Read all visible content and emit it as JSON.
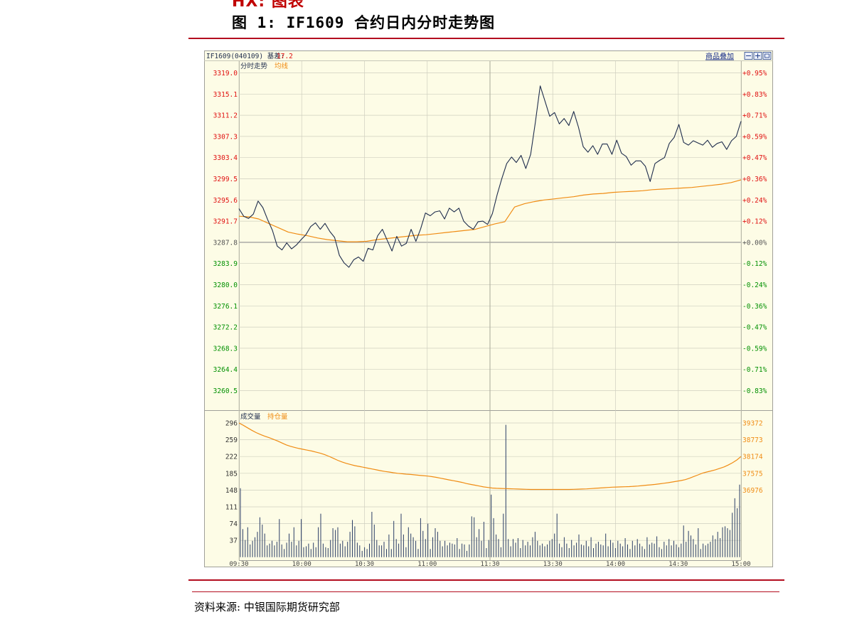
{
  "section_title": "HX: 图表",
  "figure_title": "图 1: IF1609 合约日内分时走势图",
  "source": "资料来源: 中银国际期货研究部",
  "chart_header": {
    "contract_prefix": "IF1609(040109) 基差:",
    "basis_value": "17.2",
    "overlay_link": "商品叠加",
    "toolbar_icons": [
      "zoom-out-icon",
      "zoom-in-icon",
      "fit-icon"
    ]
  },
  "colors": {
    "background": "#fdfce6",
    "price_line": "#1f2d4d",
    "avg_line": "#f08c14",
    "up_text": "#e01010",
    "down_text": "#009000",
    "grid": "#cfcfbf",
    "volume_bar": "#2a3d66"
  },
  "chart_data": [
    {
      "type": "line",
      "title": "分时走势",
      "series": [
        {
          "name": "分时走势",
          "values": [
            3294.0,
            3292.6,
            3292.2,
            3293.0,
            3295.4,
            3294.2,
            3292.0,
            3290.0,
            3287.1,
            3286.4,
            3287.7,
            3286.6,
            3287.3,
            3288.3,
            3289.2,
            3290.7,
            3291.4,
            3290.2,
            3291.3,
            3289.8,
            3288.7,
            3285.4,
            3284.0,
            3283.2,
            3284.6,
            3285.1,
            3284.3,
            3286.7,
            3286.4,
            3289.0,
            3290.2,
            3288.2,
            3286.2,
            3288.9,
            3287.1,
            3287.6,
            3290.2,
            3288.0,
            3290.3,
            3293.2,
            3292.7,
            3293.4,
            3293.6,
            3292.1,
            3294.1,
            3293.4,
            3294.1,
            3291.7,
            3290.8,
            3290.2,
            3291.6,
            3291.7,
            3291.1,
            3293.1,
            3296.6,
            3299.6,
            3302.3,
            3303.5,
            3302.5,
            3303.8,
            3301.4,
            3304.0,
            3310.0,
            3316.6,
            3313.8,
            3311.0,
            3311.7,
            3309.6,
            3310.6,
            3309.3,
            3311.9,
            3309.0,
            3305.4,
            3304.4,
            3305.6,
            3304.0,
            3305.9,
            3305.9,
            3304.0,
            3306.6,
            3304.2,
            3303.6,
            3302.0,
            3302.8,
            3302.8,
            3301.8,
            3299.0,
            3302.3,
            3302.9,
            3303.4,
            3306.0,
            3307.1,
            3309.5,
            3306.2,
            3305.7,
            3306.5,
            3306.1,
            3305.7,
            3306.6,
            3305.3,
            3306.0,
            3306.3,
            3304.9,
            3306.5,
            3307.3,
            3310.1
          ]
        },
        {
          "name": "均线",
          "values": [
            3292.6,
            3292.5,
            3292.1,
            3291.3,
            3290.5,
            3289.7,
            3289.3,
            3289.0,
            3288.6,
            3288.3,
            3288.1,
            3287.9,
            3287.9,
            3288.0,
            3288.3,
            3288.5,
            3288.7,
            3288.9,
            3289.1,
            3289.2,
            3289.4,
            3289.6,
            3289.8,
            3290.0,
            3290.2,
            3290.7,
            3291.2,
            3291.6,
            3294.3,
            3294.9,
            3295.3,
            3295.6,
            3295.8,
            3296.0,
            3296.2,
            3296.5,
            3296.7,
            3296.8,
            3297.0,
            3297.1,
            3297.2,
            3297.3,
            3297.5,
            3297.6,
            3297.7,
            3297.8,
            3297.9,
            3298.1,
            3298.3,
            3298.5,
            3298.8,
            3299.3
          ]
        }
      ],
      "y_ticks_left": [
        "3319.0",
        "3315.1",
        "3311.2",
        "3307.3",
        "3303.4",
        "3299.5",
        "3295.6",
        "3291.7",
        "3287.8",
        "3283.9",
        "3280.0",
        "3276.1",
        "3272.2",
        "3268.3",
        "3264.4",
        "3260.5"
      ],
      "y_ticks_right": [
        "+0.95%",
        "+0.83%",
        "+0.71%",
        "+0.59%",
        "+0.47%",
        "+0.36%",
        "+0.24%",
        "+0.12%",
        "+0.00%",
        "-0.12%",
        "-0.24%",
        "-0.36%",
        "-0.47%",
        "-0.59%",
        "-0.71%",
        "-0.83%"
      ],
      "ylim": [
        3256.6,
        3320.8
      ],
      "reference_price": 3287.8
    },
    {
      "type": "bar",
      "title": "成交量",
      "series": [
        {
          "name": "成交量",
          "values": [
            152,
            62,
            38,
            66,
            28,
            36,
            44,
            56,
            88,
            72,
            52,
            26,
            30,
            36,
            26,
            34,
            84,
            28,
            18,
            32,
            52,
            34,
            66,
            26,
            36,
            84,
            22,
            24,
            30,
            18,
            32,
            22,
            66,
            96,
            30,
            22,
            20,
            38,
            64,
            60,
            66,
            30,
            36,
            24,
            34,
            56,
            82,
            68,
            32,
            26,
            14,
            22,
            18,
            30,
            100,
            72,
            38,
            26,
            26,
            34,
            18,
            50,
            18,
            80,
            40,
            30,
            96,
            50,
            22,
            66,
            52,
            44,
            36,
            18,
            86,
            58,
            40,
            74,
            18,
            44,
            64,
            56,
            36,
            24,
            36,
            26,
            32,
            30,
            28,
            42,
            18,
            30,
            28,
            14,
            28,
            90,
            88,
            44,
            62,
            36,
            78,
            20,
            38,
            138,
            86,
            50,
            40,
            22,
            96,
            292,
            40,
            24,
            40,
            32,
            42,
            20,
            38,
            26,
            34,
            26,
            44,
            56,
            36,
            26,
            30,
            24,
            28,
            36,
            40,
            52,
            96,
            30,
            22,
            44,
            30,
            20,
            38,
            26,
            32,
            50,
            28,
            26,
            36,
            24,
            44,
            20,
            30,
            34,
            28,
            26,
            52,
            24,
            38,
            32,
            20,
            36,
            30,
            24,
            42,
            28,
            18,
            36,
            26,
            40,
            30,
            24,
            18,
            44,
            28,
            32,
            30,
            46,
            22,
            18,
            34,
            26,
            40,
            26,
            36,
            28,
            22,
            30,
            70,
            34,
            58,
            48,
            40,
            28,
            64,
            18,
            30,
            26,
            30,
            34,
            48,
            40,
            56,
            42,
            66,
            68,
            64,
            60,
            98,
            130,
            108,
            160
          ]
        },
        {
          "name": "持仓量",
          "values": [
            39372,
            39290,
            39200,
            39110,
            39030,
            38960,
            38900,
            38850,
            38790,
            38730,
            38660,
            38590,
            38540,
            38500,
            38460,
            38430,
            38400,
            38370,
            38330,
            38290,
            38240,
            38180,
            38110,
            38040,
            37980,
            37930,
            37890,
            37850,
            37820,
            37790,
            37760,
            37730,
            37700,
            37670,
            37640,
            37620,
            37595,
            37575,
            37560,
            37545,
            37535,
            37520,
            37505,
            37490,
            37475,
            37455,
            37430,
            37400,
            37370,
            37340,
            37310,
            37280,
            37250,
            37210,
            37180,
            37150,
            37120,
            37090,
            37070,
            37050,
            37040,
            37035,
            37030,
            37025,
            37020,
            37015,
            37010,
            37005,
            37000,
            37000,
            37000,
            37000,
            37000,
            37000,
            37000,
            37000,
            37000,
            37000,
            37005,
            37010,
            37015,
            37020,
            37030,
            37040,
            37050,
            37060,
            37070,
            37080,
            37085,
            37090,
            37095,
            37100,
            37110,
            37120,
            37135,
            37150,
            37165,
            37180,
            37200,
            37220,
            37240,
            37265,
            37290,
            37315,
            37350,
            37400,
            37460,
            37520,
            37580,
            37620,
            37660,
            37700,
            37750,
            37800,
            37870,
            37950,
            38050,
            38174
          ]
        }
      ],
      "y_ticks_left": [
        "296",
        "259",
        "222",
        "185",
        "148",
        "111",
        "74",
        "37"
      ],
      "y_ticks_right": [
        "39372",
        "38773",
        "38174",
        "37575",
        "36976"
      ],
      "ylim": [
        0,
        296
      ],
      "right_ylim": [
        36000,
        39372
      ],
      "x_ticks": [
        "09:30",
        "10:00",
        "10:30",
        "11:00",
        "11:30",
        "13:30",
        "14:00",
        "14:30",
        "15:00"
      ]
    }
  ]
}
